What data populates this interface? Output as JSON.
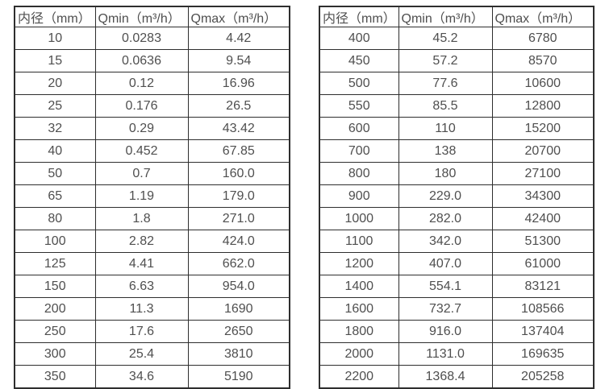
{
  "page": {
    "background_color": "#ffffff",
    "text_color": "#4f4f4f",
    "border_color": "#2e2e2e"
  },
  "tables": [
    {
      "name": "flow-rate-table-small-diameters",
      "headers": [
        "内径（mm）",
        "Qmin（m³/h）",
        "Qmax（m³/h）"
      ],
      "rows": [
        [
          "10",
          "0.0283",
          "4.42"
        ],
        [
          "15",
          "0.0636",
          "9.54"
        ],
        [
          "20",
          "0.12",
          "16.96"
        ],
        [
          "25",
          "0.176",
          "26.5"
        ],
        [
          "32",
          "0.29",
          "43.42"
        ],
        [
          "40",
          "0.452",
          "67.85"
        ],
        [
          "50",
          "0.7",
          "160.0"
        ],
        [
          "65",
          "1.19",
          "179.0"
        ],
        [
          "80",
          "1.8",
          "271.0"
        ],
        [
          "100",
          "2.82",
          "424.0"
        ],
        [
          "125",
          "4.41",
          "662.0"
        ],
        [
          "150",
          "6.63",
          "954.0"
        ],
        [
          "200",
          "11.3",
          "1690"
        ],
        [
          "250",
          "17.6",
          "2650"
        ],
        [
          "300",
          "25.4",
          "3810"
        ],
        [
          "350",
          "34.6",
          "5190"
        ]
      ]
    },
    {
      "name": "flow-rate-table-large-diameters",
      "headers": [
        "内径（mm）",
        "Qmin（m³/h）",
        "Qmax（m³/h）"
      ],
      "rows": [
        [
          "400",
          "45.2",
          "6780"
        ],
        [
          "450",
          "57.2",
          "8570"
        ],
        [
          "500",
          "77.6",
          "10600"
        ],
        [
          "550",
          "85.5",
          "12800"
        ],
        [
          "600",
          "110",
          "15200"
        ],
        [
          "700",
          "138",
          "20700"
        ],
        [
          "800",
          "180",
          "27100"
        ],
        [
          "900",
          "229.0",
          "34300"
        ],
        [
          "1000",
          "282.0",
          "42400"
        ],
        [
          "1100",
          "342.0",
          "51300"
        ],
        [
          "1200",
          "407.0",
          "61000"
        ],
        [
          "1400",
          "554.1",
          "83121"
        ],
        [
          "1600",
          "732.7",
          "108566"
        ],
        [
          "1800",
          "916.0",
          "137404"
        ],
        [
          "2000",
          "1131.0",
          "169635"
        ],
        [
          "2200",
          "1368.4",
          "205258"
        ]
      ]
    }
  ]
}
